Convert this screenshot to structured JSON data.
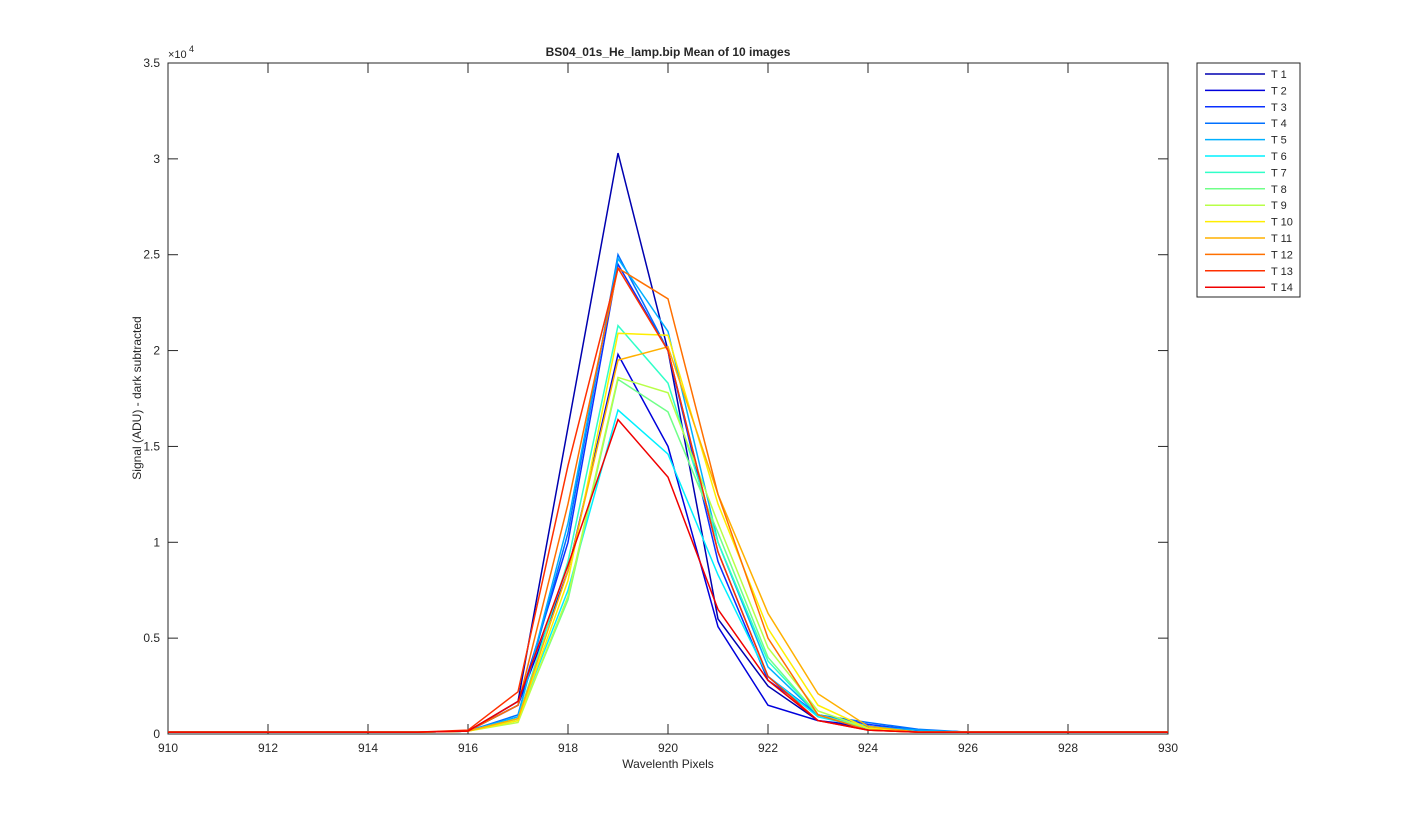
{
  "chart_data": {
    "type": "line",
    "title": "BS04_01s_He_lamp.bip  Mean of 10 images",
    "x_label": "Wavelenth Pixels",
    "y_label": "Signal (ADU) - dark subtracted",
    "y_multiplier": "×10",
    "y_multiplier_exponent": "4",
    "x": [
      910,
      911,
      912,
      913,
      914,
      915,
      916,
      917,
      918,
      919,
      920,
      921,
      922,
      923,
      924,
      925,
      926,
      927,
      928,
      929,
      930
    ],
    "xlim": [
      910,
      930
    ],
    "xticks": [
      910,
      912,
      914,
      916,
      918,
      920,
      922,
      924,
      926,
      928,
      930
    ],
    "ylim": [
      0,
      3.5
    ],
    "yticks": [
      0,
      0.5,
      1,
      1.5,
      2,
      2.5,
      3,
      3.5
    ],
    "grid": false,
    "legend": "outside-right",
    "series": [
      {
        "name": "T 1",
        "color": "#0000b0",
        "values": [
          0.01,
          0.01,
          0.01,
          0.01,
          0.01,
          0.01,
          0.015,
          0.17,
          1.6,
          3.03,
          2.0,
          0.6,
          0.25,
          0.07,
          0.03,
          0.02,
          0.01,
          0.01,
          0.01,
          0.01,
          0.01
        ]
      },
      {
        "name": "T 2",
        "color": "#0000dc",
        "values": [
          0.01,
          0.01,
          0.01,
          0.01,
          0.01,
          0.01,
          0.015,
          0.15,
          0.85,
          1.98,
          1.5,
          0.56,
          0.15,
          0.07,
          0.04,
          0.02,
          0.01,
          0.01,
          0.01,
          0.01,
          0.01
        ]
      },
      {
        "name": "T 3",
        "color": "#0a30ff",
        "values": [
          0.01,
          0.01,
          0.01,
          0.01,
          0.01,
          0.01,
          0.015,
          0.15,
          1.0,
          2.45,
          2.0,
          0.9,
          0.28,
          0.1,
          0.05,
          0.02,
          0.01,
          0.01,
          0.01,
          0.01,
          0.01
        ]
      },
      {
        "name": "T 4",
        "color": "#0070ff",
        "values": [
          0.01,
          0.01,
          0.01,
          0.01,
          0.01,
          0.01,
          0.015,
          0.1,
          1.05,
          2.5,
          2.0,
          0.95,
          0.3,
          0.1,
          0.06,
          0.025,
          0.01,
          0.01,
          0.01,
          0.01,
          0.01
        ]
      },
      {
        "name": "T 5",
        "color": "#00b0ff",
        "values": [
          0.01,
          0.01,
          0.01,
          0.01,
          0.01,
          0.01,
          0.015,
          0.09,
          1.1,
          2.48,
          2.1,
          1.0,
          0.35,
          0.1,
          0.04,
          0.02,
          0.01,
          0.01,
          0.01,
          0.01,
          0.01
        ]
      },
      {
        "name": "T 6",
        "color": "#00f0ff",
        "values": [
          0.01,
          0.01,
          0.01,
          0.01,
          0.01,
          0.01,
          0.015,
          0.08,
          0.75,
          1.69,
          1.46,
          0.83,
          0.3,
          0.09,
          0.03,
          0.01,
          0.01,
          0.01,
          0.01,
          0.01,
          0.01
        ]
      },
      {
        "name": "T 7",
        "color": "#30ffc8",
        "values": [
          0.01,
          0.01,
          0.01,
          0.01,
          0.01,
          0.01,
          0.015,
          0.08,
          0.9,
          2.13,
          1.83,
          1.0,
          0.38,
          0.1,
          0.03,
          0.01,
          0.01,
          0.01,
          0.01,
          0.01,
          0.01
        ]
      },
      {
        "name": "T 8",
        "color": "#70ff88",
        "values": [
          0.01,
          0.01,
          0.01,
          0.01,
          0.01,
          0.01,
          0.015,
          0.07,
          0.7,
          1.85,
          1.68,
          1.05,
          0.4,
          0.1,
          0.03,
          0.01,
          0.01,
          0.01,
          0.01,
          0.01,
          0.01
        ]
      },
      {
        "name": "T 9",
        "color": "#b8ff48",
        "values": [
          0.01,
          0.01,
          0.01,
          0.01,
          0.01,
          0.01,
          0.015,
          0.06,
          0.72,
          1.86,
          1.78,
          1.1,
          0.45,
          0.12,
          0.03,
          0.01,
          0.01,
          0.01,
          0.01,
          0.01,
          0.01
        ]
      },
      {
        "name": "T 10",
        "color": "#ffee00",
        "values": [
          0.01,
          0.01,
          0.01,
          0.01,
          0.01,
          0.01,
          0.015,
          0.07,
          0.8,
          2.09,
          2.08,
          1.2,
          0.55,
          0.15,
          0.03,
          0.01,
          0.01,
          0.01,
          0.01,
          0.01,
          0.01
        ]
      },
      {
        "name": "T 11",
        "color": "#ffb000",
        "values": [
          0.01,
          0.01,
          0.01,
          0.01,
          0.01,
          0.01,
          0.015,
          0.08,
          0.85,
          1.95,
          2.02,
          1.25,
          0.63,
          0.21,
          0.04,
          0.01,
          0.01,
          0.01,
          0.01,
          0.01,
          0.01
        ]
      },
      {
        "name": "T 12",
        "color": "#ff7000",
        "values": [
          0.01,
          0.01,
          0.01,
          0.01,
          0.01,
          0.01,
          0.015,
          0.15,
          1.2,
          2.43,
          2.27,
          1.25,
          0.5,
          0.1,
          0.02,
          0.01,
          0.01,
          0.01,
          0.01,
          0.01,
          0.01
        ]
      },
      {
        "name": "T 13",
        "color": "#ff3000",
        "values": [
          0.01,
          0.01,
          0.01,
          0.01,
          0.01,
          0.01,
          0.02,
          0.22,
          1.4,
          2.43,
          2.0,
          0.95,
          0.3,
          0.07,
          0.02,
          0.01,
          0.01,
          0.01,
          0.01,
          0.01,
          0.01
        ]
      },
      {
        "name": "T 14",
        "color": "#f00000",
        "values": [
          0.01,
          0.01,
          0.01,
          0.01,
          0.01,
          0.01,
          0.015,
          0.17,
          0.88,
          1.64,
          1.34,
          0.65,
          0.28,
          0.07,
          0.02,
          0.01,
          0.01,
          0.01,
          0.01,
          0.01,
          0.01
        ]
      }
    ]
  }
}
